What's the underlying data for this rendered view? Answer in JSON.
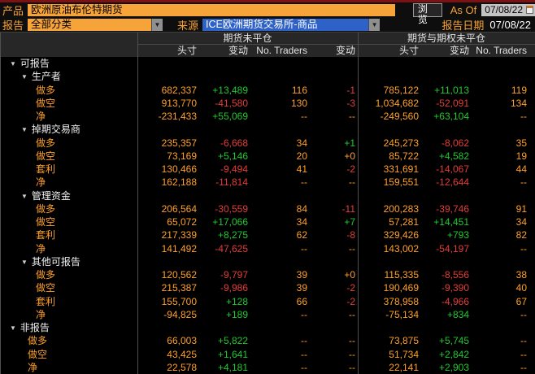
{
  "topbar": {
    "product_label": "产品",
    "product_value": "欧洲原油布伦特期货",
    "browse_button": "浏览",
    "as_of_label": "As Of",
    "as_of_value": "07/08/22",
    "report_label": "报告",
    "report_value": "全部分类",
    "source_label": "来源",
    "source_value": "ICE欧洲期货交易所-商品",
    "report_date_label": "报告日期",
    "report_date_value": "07/08/22"
  },
  "table": {
    "group_headers": [
      "期货未平仓",
      "期货与期权未平仓"
    ],
    "columns": [
      "头寸",
      "变动",
      "No. Traders",
      "变动",
      "头寸",
      "变动",
      "No. Traders"
    ],
    "rows": [
      {
        "type": "section",
        "indent": "0",
        "label": "可报告"
      },
      {
        "type": "section",
        "indent": "1",
        "label": "生产者"
      },
      {
        "type": "data",
        "indent": "2",
        "label": "做多",
        "cells": [
          "682,337",
          "+13,489",
          "116",
          "-1",
          "785,122",
          "+11,013",
          "119"
        ]
      },
      {
        "type": "data",
        "indent": "2",
        "label": "做空",
        "cells": [
          "913,770",
          "-41,580",
          "130",
          "-3",
          "1,034,682",
          "-52,091",
          "134"
        ]
      },
      {
        "type": "data",
        "indent": "2",
        "label": "净",
        "cells": [
          "-231,433",
          "+55,069",
          "--",
          "--",
          "-249,560",
          "+63,104",
          "--"
        ]
      },
      {
        "type": "section",
        "indent": "1",
        "label": "掉期交易商"
      },
      {
        "type": "data",
        "indent": "2",
        "label": "做多",
        "cells": [
          "235,357",
          "-6,668",
          "34",
          "+1",
          "245,273",
          "-8,062",
          "35"
        ]
      },
      {
        "type": "data",
        "indent": "2",
        "label": "做空",
        "cells": [
          "73,169",
          "+5,146",
          "20",
          "+0",
          "85,722",
          "+4,582",
          "19"
        ]
      },
      {
        "type": "data",
        "indent": "2",
        "label": "套利",
        "cells": [
          "130,466",
          "-9,494",
          "41",
          "-2",
          "331,691",
          "-14,067",
          "44"
        ]
      },
      {
        "type": "data",
        "indent": "2",
        "label": "净",
        "cells": [
          "162,188",
          "-11,814",
          "--",
          "--",
          "159,551",
          "-12,644",
          "--"
        ]
      },
      {
        "type": "section",
        "indent": "1",
        "label": "管理资金"
      },
      {
        "type": "data",
        "indent": "2",
        "label": "做多",
        "cells": [
          "206,564",
          "-30,559",
          "84",
          "-11",
          "200,283",
          "-39,746",
          "91"
        ]
      },
      {
        "type": "data",
        "indent": "2",
        "label": "做空",
        "cells": [
          "65,072",
          "+17,066",
          "34",
          "+7",
          "57,281",
          "+14,451",
          "34"
        ]
      },
      {
        "type": "data",
        "indent": "2",
        "label": "套利",
        "cells": [
          "217,339",
          "+8,275",
          "62",
          "-8",
          "329,426",
          "+793",
          "82"
        ]
      },
      {
        "type": "data",
        "indent": "2",
        "label": "净",
        "cells": [
          "141,492",
          "-47,625",
          "--",
          "--",
          "143,002",
          "-54,197",
          "--"
        ]
      },
      {
        "type": "section",
        "indent": "1",
        "label": "其他可报告"
      },
      {
        "type": "data",
        "indent": "2",
        "label": "做多",
        "cells": [
          "120,562",
          "-9,797",
          "39",
          "+0",
          "115,335",
          "-8,556",
          "38"
        ]
      },
      {
        "type": "data",
        "indent": "2",
        "label": "做空",
        "cells": [
          "215,387",
          "-9,986",
          "39",
          "-2",
          "190,469",
          "-9,390",
          "40"
        ]
      },
      {
        "type": "data",
        "indent": "2",
        "label": "套利",
        "cells": [
          "155,700",
          "+128",
          "66",
          "-2",
          "378,958",
          "-4,966",
          "67"
        ]
      },
      {
        "type": "data",
        "indent": "2",
        "label": "净",
        "cells": [
          "-94,825",
          "+189",
          "--",
          "--",
          "-75,134",
          "+834",
          "--"
        ]
      },
      {
        "type": "section",
        "indent": "0",
        "label": "非报告"
      },
      {
        "type": "data",
        "indent": "1b",
        "label": "做多",
        "cells": [
          "66,003",
          "+5,822",
          "--",
          "--",
          "73,875",
          "+5,745",
          "--"
        ]
      },
      {
        "type": "data",
        "indent": "1b",
        "label": "做空",
        "cells": [
          "43,425",
          "+1,641",
          "--",
          "--",
          "51,734",
          "+2,842",
          "--"
        ]
      },
      {
        "type": "data",
        "indent": "1b",
        "label": "净",
        "cells": [
          "22,578",
          "+4,181",
          "--",
          "--",
          "22,141",
          "+2,903",
          "--"
        ]
      }
    ]
  },
  "colors": {
    "amber": "#ffa028",
    "green": "#21c82e",
    "red": "#e23d38",
    "field_orange": "#f6a33a",
    "field_blue": "#2f62c9",
    "top_strip_red": "#7d1214",
    "header_bg": "#272727"
  }
}
